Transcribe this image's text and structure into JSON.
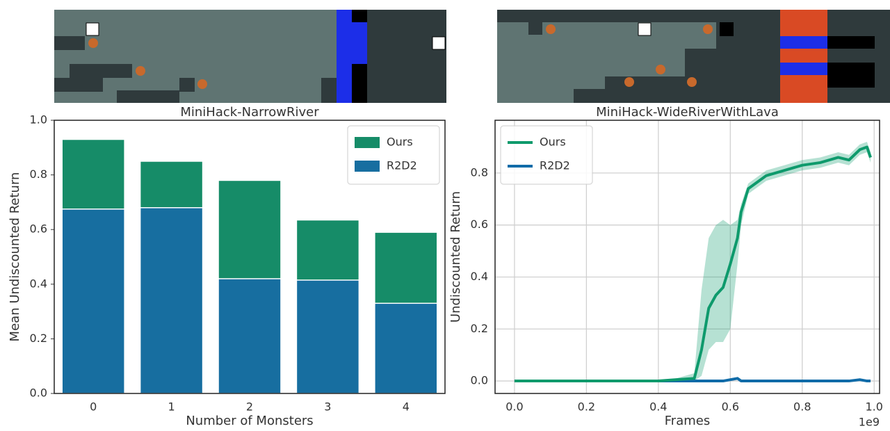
{
  "chart_data": [
    {
      "type": "bar",
      "title": "MiniHack-NarrowRiver",
      "xlabel": "Number of Monsters",
      "ylabel": "Mean Undiscounted Return",
      "categories": [
        "0",
        "1",
        "2",
        "3",
        "4"
      ],
      "series": [
        {
          "name": "Ours",
          "color": "#168c68",
          "values": [
            0.93,
            0.85,
            0.78,
            0.635,
            0.59
          ]
        },
        {
          "name": "R2D2",
          "color": "#176ea0",
          "values": [
            0.675,
            0.68,
            0.42,
            0.415,
            0.33
          ]
        }
      ],
      "ylim": [
        0,
        1
      ],
      "yticks": [
        {
          "value": 0,
          "label": "0.0"
        },
        0.2,
        0.4,
        0.6,
        0.8,
        {
          "value": 1,
          "label": "1.0"
        }
      ],
      "grid": false,
      "legend": "upper-right"
    },
    {
      "type": "line",
      "title": "MiniHack-WideRiverWithLava",
      "xlabel": "Frames",
      "ylabel": "Undiscounted Return",
      "x_offset": "1e9",
      "x": [
        0,
        0.1,
        0.2,
        0.3,
        0.4,
        0.45,
        0.5,
        0.52,
        0.54,
        0.56,
        0.58,
        0.6,
        0.62,
        0.63,
        0.65,
        0.7,
        0.75,
        0.8,
        0.85,
        0.9,
        0.93,
        0.96,
        0.98,
        0.99
      ],
      "series": [
        {
          "name": "Ours",
          "color": "#0e9a6c",
          "values": [
            0,
            0,
            0,
            0,
            0,
            0.005,
            0.01,
            0.12,
            0.28,
            0.33,
            0.36,
            0.45,
            0.55,
            0.65,
            0.74,
            0.79,
            0.81,
            0.83,
            0.84,
            0.86,
            0.85,
            0.89,
            0.9,
            0.86
          ],
          "upper": [
            0,
            0,
            0,
            0,
            0,
            0.01,
            0.03,
            0.35,
            0.55,
            0.6,
            0.62,
            0.6,
            0.62,
            0.68,
            0.76,
            0.81,
            0.83,
            0.85,
            0.86,
            0.88,
            0.87,
            0.91,
            0.92,
            0.88
          ],
          "lower": [
            0,
            0,
            0,
            0,
            0,
            0,
            0,
            0.02,
            0.12,
            0.15,
            0.15,
            0.2,
            0.45,
            0.6,
            0.72,
            0.77,
            0.79,
            0.81,
            0.82,
            0.84,
            0.83,
            0.87,
            0.88,
            0.84
          ]
        },
        {
          "name": "R2D2",
          "color": "#0f6ba8",
          "values": [
            0,
            0,
            0,
            0,
            0,
            0,
            0,
            0,
            0,
            0,
            0,
            0.005,
            0.01,
            0,
            0,
            0,
            0,
            0,
            0,
            0,
            0,
            0.005,
            0,
            0
          ]
        }
      ],
      "xlim": [
        -0.054,
        1.015
      ],
      "xticks": [
        {
          "value": 0,
          "label": "0.0"
        },
        0.2,
        0.4,
        0.6,
        0.8,
        {
          "value": 1,
          "label": "1.0"
        }
      ],
      "ylim": [
        -0.048,
        1.003
      ],
      "yticks": [
        {
          "value": 0,
          "label": "0.0"
        },
        0.2,
        0.4,
        0.6,
        0.8
      ],
      "grid": true,
      "legend": "upper-left"
    }
  ]
}
